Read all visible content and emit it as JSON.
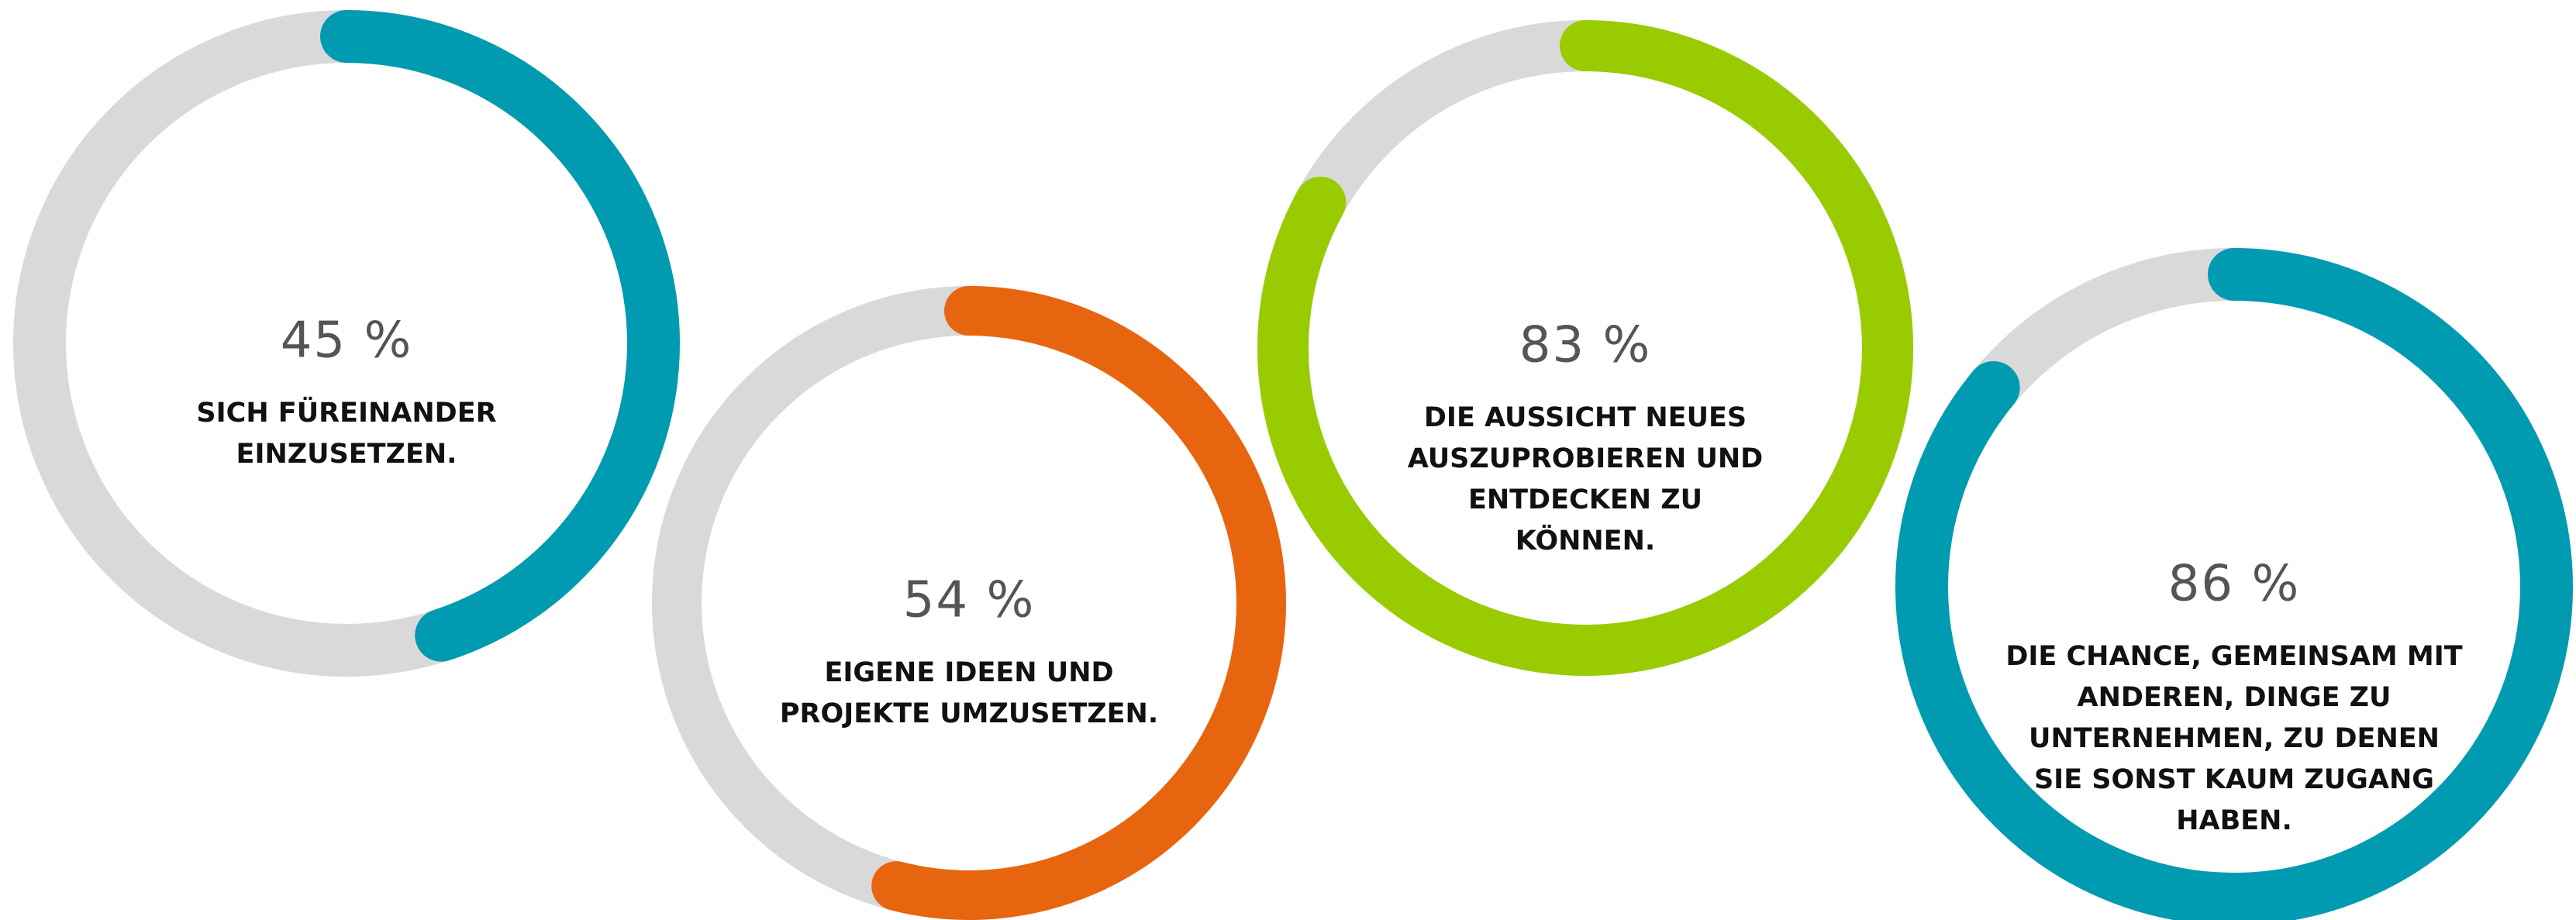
{
  "chart_data": {
    "type": "donut",
    "categories": [
      [
        "SICH FÜREINANDER",
        "EINZUSETZEN."
      ],
      [
        "EIGENE IDEEN UND",
        "PROJEKTE UMZUSETZEN."
      ],
      [
        "DIE AUSSICHT NEUES",
        "AUSZUPROBIEREN UND",
        "ENTDECKEN ZU",
        "KÖNNEN."
      ],
      [
        "DIE CHANCE, GEMEINSAM MIT",
        "ANDEREN, DINGE ZU",
        "UNTERNEHMEN, ZU DENEN",
        "SIE SONST KAUM ZUGANG",
        "HABEN."
      ]
    ],
    "values": [
      45,
      54,
      83,
      86
    ],
    "value_labels": [
      "45 %",
      "54 %",
      "83 %",
      "86 %"
    ],
    "colors": [
      "#009bb0",
      "#e8650f",
      "#99cc00",
      "#009bb0"
    ],
    "track_color": "#d9d9d9",
    "ylim": [
      0,
      100
    ]
  }
}
